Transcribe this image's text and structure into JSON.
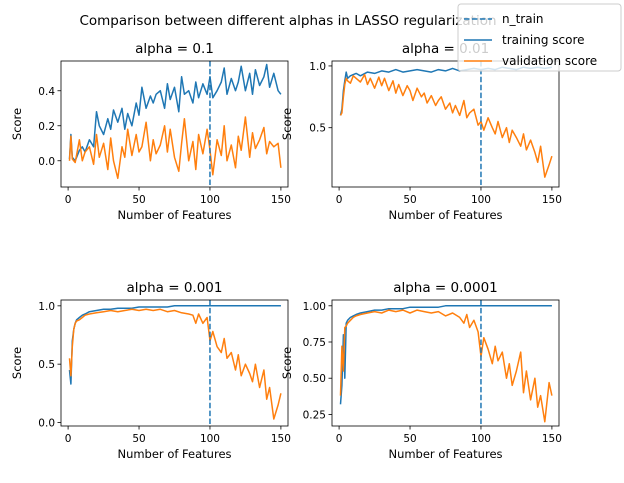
{
  "suptitle": "Comparison between different alphas in LASSO regularization",
  "legend": {
    "placement": "top-right",
    "entries": [
      {
        "label": "n_train",
        "color": "#1f77b4",
        "style": "dashed"
      },
      {
        "label": "training score",
        "color": "#1f77b4",
        "style": "solid"
      },
      {
        "label": "validation score",
        "color": "#ff7f0e",
        "style": "solid"
      }
    ]
  },
  "colors": {
    "train": "#1f77b4",
    "validation": "#ff7f0e",
    "n_train": "#1f77b4"
  },
  "chart_data": [
    {
      "type": "line",
      "title": "alpha = 0.1",
      "xlabel": "Number of Features",
      "ylabel": "Score",
      "xlim": [
        -5,
        155
      ],
      "ylim": [
        -0.15,
        0.57
      ],
      "xticks": [
        0,
        50,
        100,
        150
      ],
      "yticks": [
        0.0,
        0.2,
        0.4
      ],
      "ytick_labels": [
        "0.0",
        "0.2",
        "0.4"
      ],
      "n_train": 100,
      "series": [
        {
          "name": "training score",
          "key": "train",
          "x": [
            1,
            2,
            3,
            5,
            8,
            10,
            12,
            15,
            18,
            20,
            22,
            25,
            28,
            30,
            32,
            35,
            38,
            40,
            42,
            45,
            48,
            50,
            52,
            55,
            58,
            60,
            62,
            65,
            68,
            70,
            72,
            75,
            78,
            80,
            82,
            85,
            88,
            90,
            92,
            95,
            98,
            100,
            102,
            105,
            108,
            110,
            112,
            115,
            118,
            120,
            122,
            125,
            128,
            130,
            132,
            135,
            138,
            140,
            142,
            145,
            148,
            150
          ],
          "y": [
            0.01,
            0.15,
            0.02,
            0.0,
            0.06,
            0.08,
            0.05,
            0.12,
            0.08,
            0.28,
            0.2,
            0.15,
            0.24,
            0.18,
            0.29,
            0.22,
            0.3,
            0.18,
            0.27,
            0.2,
            0.33,
            0.26,
            0.42,
            0.3,
            0.37,
            0.33,
            0.38,
            0.4,
            0.3,
            0.44,
            0.35,
            0.42,
            0.28,
            0.48,
            0.38,
            0.4,
            0.33,
            0.45,
            0.36,
            0.44,
            0.38,
            0.48,
            0.36,
            0.4,
            0.45,
            0.53,
            0.38,
            0.47,
            0.4,
            0.45,
            0.54,
            0.4,
            0.5,
            0.38,
            0.52,
            0.43,
            0.48,
            0.55,
            0.42,
            0.5,
            0.4,
            0.38
          ]
        },
        {
          "name": "validation score",
          "key": "validation",
          "x": [
            1,
            2,
            3,
            5,
            8,
            10,
            12,
            15,
            18,
            20,
            22,
            25,
            28,
            30,
            32,
            35,
            38,
            40,
            42,
            45,
            48,
            50,
            52,
            55,
            58,
            60,
            62,
            65,
            68,
            70,
            72,
            75,
            78,
            80,
            82,
            85,
            88,
            90,
            92,
            95,
            98,
            100,
            102,
            105,
            108,
            110,
            112,
            115,
            118,
            120,
            122,
            125,
            128,
            130,
            132,
            135,
            138,
            140,
            142,
            145,
            148,
            150
          ],
          "y": [
            0.0,
            0.14,
            0.01,
            -0.01,
            0.12,
            0.0,
            0.05,
            0.08,
            -0.02,
            0.15,
            0.02,
            0.1,
            -0.05,
            0.13,
            0.0,
            -0.1,
            0.08,
            0.02,
            0.18,
            0.03,
            0.15,
            0.05,
            0.08,
            0.22,
            0.0,
            0.12,
            0.04,
            0.09,
            0.2,
            0.05,
            0.18,
            0.02,
            -0.06,
            0.1,
            0.24,
            0.0,
            0.11,
            -0.05,
            0.15,
            0.04,
            0.18,
            0.06,
            -0.08,
            0.12,
            0.03,
            0.2,
            0.0,
            0.09,
            -0.04,
            0.14,
            0.06,
            0.25,
            0.02,
            0.16,
            0.07,
            0.12,
            0.19,
            0.04,
            0.11,
            0.08,
            0.1,
            -0.04
          ]
        }
      ]
    },
    {
      "type": "line",
      "title": "alpha = 0.01",
      "xlabel": "Number of Features",
      "ylabel": "Score",
      "xlim": [
        -5,
        155
      ],
      "ylim": [
        0.02,
        1.04
      ],
      "xticks": [
        0,
        50,
        100,
        150
      ],
      "yticks": [
        0.5,
        1.0
      ],
      "ytick_labels": [
        "0.5",
        "1.0"
      ],
      "n_train": 100,
      "series": [
        {
          "name": "training score",
          "key": "train",
          "x": [
            1,
            2,
            3,
            4,
            5,
            6,
            8,
            10,
            12,
            15,
            20,
            25,
            30,
            35,
            40,
            45,
            50,
            55,
            60,
            65,
            70,
            75,
            80,
            85,
            90,
            95,
            100,
            105,
            110,
            115,
            120,
            125,
            130,
            135,
            140,
            145,
            150
          ],
          "y": [
            0.6,
            0.65,
            0.8,
            0.88,
            0.95,
            0.9,
            0.92,
            0.93,
            0.94,
            0.92,
            0.95,
            0.94,
            0.96,
            0.95,
            0.97,
            0.95,
            0.96,
            0.97,
            0.96,
            0.95,
            0.97,
            0.96,
            0.98,
            0.96,
            0.97,
            0.98,
            0.97,
            0.98,
            0.97,
            0.99,
            0.98,
            0.97,
            0.99,
            0.98,
            0.99,
            0.98,
            0.99
          ]
        },
        {
          "name": "validation score",
          "key": "validation",
          "x": [
            1,
            2,
            3,
            4,
            5,
            6,
            8,
            10,
            12,
            15,
            18,
            20,
            22,
            25,
            28,
            30,
            32,
            35,
            38,
            40,
            42,
            45,
            48,
            50,
            52,
            55,
            58,
            60,
            62,
            65,
            68,
            70,
            72,
            75,
            78,
            80,
            82,
            85,
            88,
            90,
            92,
            95,
            98,
            100,
            102,
            105,
            108,
            110,
            112,
            115,
            118,
            120,
            122,
            125,
            128,
            130,
            132,
            135,
            138,
            140,
            142,
            145,
            148,
            150
          ],
          "y": [
            0.6,
            0.62,
            0.75,
            0.85,
            0.9,
            0.88,
            0.86,
            0.92,
            0.9,
            0.87,
            0.93,
            0.85,
            0.9,
            0.82,
            0.91,
            0.84,
            0.9,
            0.8,
            0.88,
            0.78,
            0.85,
            0.76,
            0.84,
            0.8,
            0.72,
            0.82,
            0.75,
            0.78,
            0.7,
            0.76,
            0.68,
            0.72,
            0.75,
            0.65,
            0.7,
            0.62,
            0.68,
            0.6,
            0.72,
            0.58,
            0.62,
            0.65,
            0.52,
            0.55,
            0.48,
            0.58,
            0.5,
            0.45,
            0.55,
            0.42,
            0.5,
            0.38,
            0.48,
            0.42,
            0.35,
            0.45,
            0.32,
            0.4,
            0.3,
            0.22,
            0.35,
            0.1,
            0.2,
            0.27
          ]
        }
      ]
    },
    {
      "type": "line",
      "title": "alpha = 0.001",
      "xlabel": "Number of Features",
      "ylabel": "Score",
      "xlim": [
        -5,
        155
      ],
      "ylim": [
        -0.03,
        1.05
      ],
      "xticks": [
        0,
        50,
        100,
        150
      ],
      "yticks": [
        0.0,
        0.5,
        1.0
      ],
      "ytick_labels": [
        "0.0",
        "0.5",
        "1.0"
      ],
      "n_train": 100,
      "series": [
        {
          "name": "training score",
          "key": "train",
          "x": [
            1,
            2,
            3,
            4,
            5,
            6,
            8,
            10,
            12,
            15,
            20,
            25,
            30,
            35,
            40,
            45,
            50,
            55,
            60,
            65,
            70,
            75,
            80,
            85,
            90,
            95,
            100,
            105,
            110,
            115,
            120,
            125,
            130,
            135,
            140,
            145,
            150
          ],
          "y": [
            0.45,
            0.33,
            0.7,
            0.8,
            0.85,
            0.88,
            0.9,
            0.92,
            0.93,
            0.95,
            0.96,
            0.97,
            0.97,
            0.98,
            0.98,
            0.98,
            0.99,
            0.99,
            0.99,
            0.99,
            0.99,
            1.0,
            1.0,
            1.0,
            1.0,
            1.0,
            1.0,
            1.0,
            1.0,
            1.0,
            1.0,
            1.0,
            1.0,
            1.0,
            1.0,
            1.0,
            1.0
          ]
        },
        {
          "name": "validation score",
          "key": "validation",
          "x": [
            1,
            2,
            3,
            4,
            5,
            6,
            8,
            10,
            12,
            15,
            20,
            25,
            30,
            35,
            40,
            45,
            50,
            55,
            60,
            65,
            70,
            75,
            80,
            85,
            88,
            90,
            92,
            95,
            98,
            100,
            102,
            105,
            108,
            110,
            112,
            115,
            118,
            120,
            122,
            125,
            128,
            130,
            132,
            135,
            138,
            140,
            142,
            145,
            148,
            150
          ],
          "y": [
            0.55,
            0.4,
            0.65,
            0.8,
            0.85,
            0.87,
            0.88,
            0.9,
            0.92,
            0.93,
            0.94,
            0.95,
            0.96,
            0.95,
            0.96,
            0.97,
            0.96,
            0.97,
            0.96,
            0.97,
            0.95,
            0.96,
            0.94,
            0.93,
            0.92,
            0.85,
            0.93,
            0.85,
            0.9,
            0.7,
            0.78,
            0.65,
            0.6,
            0.72,
            0.55,
            0.6,
            0.45,
            0.58,
            0.4,
            0.5,
            0.42,
            0.35,
            0.5,
            0.3,
            0.45,
            0.2,
            0.3,
            0.03,
            0.15,
            0.25
          ]
        }
      ]
    },
    {
      "type": "line",
      "title": "alpha = 0.0001",
      "xlabel": "Number of Features",
      "ylabel": "Score",
      "xlim": [
        -5,
        155
      ],
      "ylim": [
        0.17,
        1.04
      ],
      "xticks": [
        0,
        50,
        100,
        150
      ],
      "yticks": [
        0.25,
        0.5,
        0.75,
        1.0
      ],
      "ytick_labels": [
        "0.25",
        "0.50",
        "0.75",
        "1.00"
      ],
      "n_train": 100,
      "series": [
        {
          "name": "training score",
          "key": "train",
          "x": [
            1,
            2,
            3,
            4,
            5,
            6,
            8,
            10,
            12,
            15,
            20,
            25,
            30,
            35,
            40,
            45,
            50,
            55,
            60,
            65,
            70,
            75,
            80,
            85,
            90,
            95,
            100,
            105,
            110,
            115,
            120,
            125,
            130,
            135,
            140,
            145,
            150
          ],
          "y": [
            0.32,
            0.45,
            0.8,
            0.5,
            0.88,
            0.9,
            0.92,
            0.93,
            0.94,
            0.95,
            0.96,
            0.97,
            0.97,
            0.98,
            0.98,
            0.98,
            0.99,
            0.99,
            0.99,
            0.99,
            0.99,
            1.0,
            1.0,
            1.0,
            1.0,
            1.0,
            1.0,
            1.0,
            1.0,
            1.0,
            1.0,
            1.0,
            1.0,
            1.0,
            1.0,
            1.0,
            1.0
          ]
        },
        {
          "name": "validation score",
          "key": "validation",
          "x": [
            1,
            2,
            3,
            4,
            5,
            6,
            8,
            10,
            12,
            15,
            20,
            25,
            30,
            35,
            40,
            45,
            50,
            55,
            60,
            65,
            70,
            75,
            80,
            85,
            88,
            90,
            92,
            95,
            98,
            100,
            102,
            105,
            108,
            110,
            112,
            115,
            118,
            120,
            122,
            125,
            128,
            130,
            132,
            135,
            138,
            140,
            142,
            145,
            148,
            150
          ],
          "y": [
            0.38,
            0.72,
            0.55,
            0.85,
            0.86,
            0.88,
            0.9,
            0.92,
            0.93,
            0.94,
            0.95,
            0.96,
            0.95,
            0.97,
            0.96,
            0.97,
            0.95,
            0.97,
            0.96,
            0.95,
            0.96,
            0.93,
            0.95,
            0.92,
            0.88,
            0.94,
            0.85,
            0.9,
            0.82,
            0.65,
            0.78,
            0.7,
            0.6,
            0.72,
            0.62,
            0.68,
            0.5,
            0.6,
            0.45,
            0.55,
            0.68,
            0.4,
            0.55,
            0.35,
            0.5,
            0.3,
            0.38,
            0.2,
            0.47,
            0.38
          ]
        }
      ]
    }
  ]
}
